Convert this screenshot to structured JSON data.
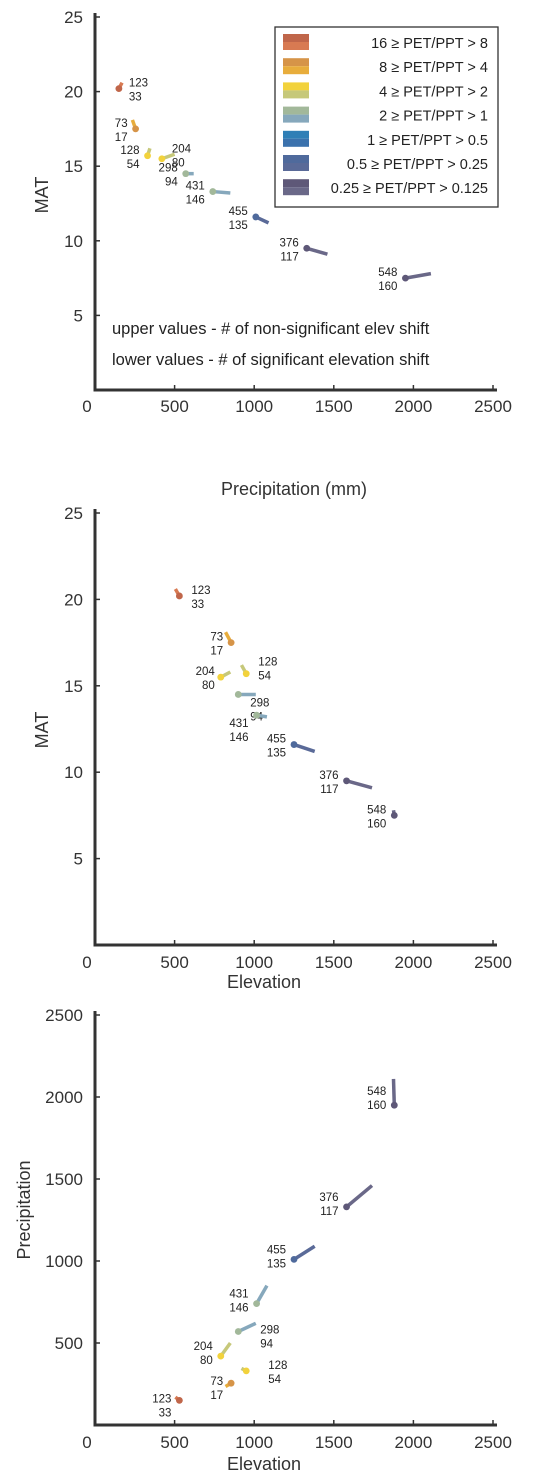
{
  "categories": [
    {
      "label": "16 ≥ PET/PPT > 8",
      "color": "#c0664a",
      "color2": "#d87a52"
    },
    {
      "label": "8 ≥ PET/PPT > 4",
      "color": "#d69448",
      "color2": "#e8ad3c"
    },
    {
      "label": "4 ≥ PET/PPT > 2",
      "color": "#f2d23c",
      "color2": "#c6c87a"
    },
    {
      "label": "2 ≥ PET/PPT > 1",
      "color": "#a2b89a",
      "color2": "#86a8bc"
    },
    {
      "label": "1 ≥ PET/PPT > 0.5",
      "color": "#2f7fb6",
      "color2": "#3b72ad"
    },
    {
      "label": "0.5 ≥ PET/PPT > 0.25",
      "color": "#4f6a9c",
      "color2": "#5a6a98"
    },
    {
      "label": "0.25 ≥ PET/PPT > 0.125",
      "color": "#5e5878",
      "color2": "#6a6888"
    }
  ],
  "groups": [
    {
      "upper": "123",
      "lower": "33",
      "cat": 0,
      "precip": [
        150,
        170
      ],
      "mat": [
        20.2,
        20.6
      ],
      "elev": [
        530,
        505
      ]
    },
    {
      "upper": "73",
      "lower": "17",
      "cat": 1,
      "precip": [
        255,
        235
      ],
      "mat": [
        17.5,
        18.1
      ],
      "elev": [
        855,
        820
      ]
    },
    {
      "upper": "128",
      "lower": "54",
      "cat": 2,
      "precip": [
        330,
        345
      ],
      "mat": [
        15.7,
        16.2
      ],
      "elev": [
        950,
        920
      ]
    },
    {
      "upper": "204",
      "lower": "80",
      "cat": 2,
      "precip": [
        420,
        500
      ],
      "mat": [
        15.5,
        15.8
      ],
      "elev": [
        790,
        850
      ]
    },
    {
      "upper": "298",
      "lower": "94",
      "cat": 3,
      "precip": [
        570,
        620
      ],
      "mat": [
        14.5,
        14.5
      ],
      "elev": [
        900,
        1010
      ]
    },
    {
      "upper": "431",
      "lower": "146",
      "cat": 3,
      "precip": [
        740,
        850
      ],
      "mat": [
        13.3,
        13.2
      ],
      "elev": [
        1015,
        1080
      ]
    },
    {
      "upper": "455",
      "lower": "135",
      "cat": 5,
      "precip": [
        1010,
        1090
      ],
      "mat": [
        11.6,
        11.2
      ],
      "elev": [
        1250,
        1380
      ]
    },
    {
      "upper": "376",
      "lower": "117",
      "cat": 6,
      "precip": [
        1330,
        1460
      ],
      "mat": [
        9.5,
        9.1
      ],
      "elev": [
        1580,
        1740
      ]
    },
    {
      "upper": "548",
      "lower": "160",
      "cat": 6,
      "precip": [
        1950,
        2110
      ],
      "mat": [
        7.5,
        7.8
      ],
      "elev": [
        1880,
        1875
      ]
    }
  ],
  "chart_data": [
    {
      "type": "scatter",
      "title": "",
      "xlabel": "Precipitation (mm)",
      "ylabel": "MAT",
      "xlim": [
        0,
        2500
      ],
      "ylim": [
        0,
        25
      ],
      "xticks": [
        "0",
        "500",
        "1000",
        "1500",
        "2000",
        "2500"
      ],
      "yticks": [
        "5",
        "10",
        "15",
        "20",
        "25"
      ],
      "legend_location": "top-right",
      "annotations": [
        "upper values - # of non-significant elev shift",
        "lower values - # of significant elevation shift"
      ]
    },
    {
      "type": "scatter",
      "title": "",
      "xlabel": "Elevation",
      "ylabel": "MAT",
      "xlim": [
        0,
        2500
      ],
      "ylim": [
        0,
        25
      ],
      "xticks": [
        "0",
        "500",
        "1000",
        "1500",
        "2000",
        "2500"
      ],
      "yticks": [
        "5",
        "10",
        "15",
        "20",
        "25"
      ]
    },
    {
      "type": "scatter",
      "title": "",
      "xlabel": "Elevation",
      "ylabel": "Precipitation",
      "xlim": [
        0,
        2500
      ],
      "ylim": [
        0,
        2500
      ],
      "xticks": [
        "0",
        "500",
        "1000",
        "1500",
        "2000",
        "2500"
      ],
      "yticks": [
        "500",
        "1000",
        "1500",
        "2000",
        "2500"
      ]
    }
  ]
}
